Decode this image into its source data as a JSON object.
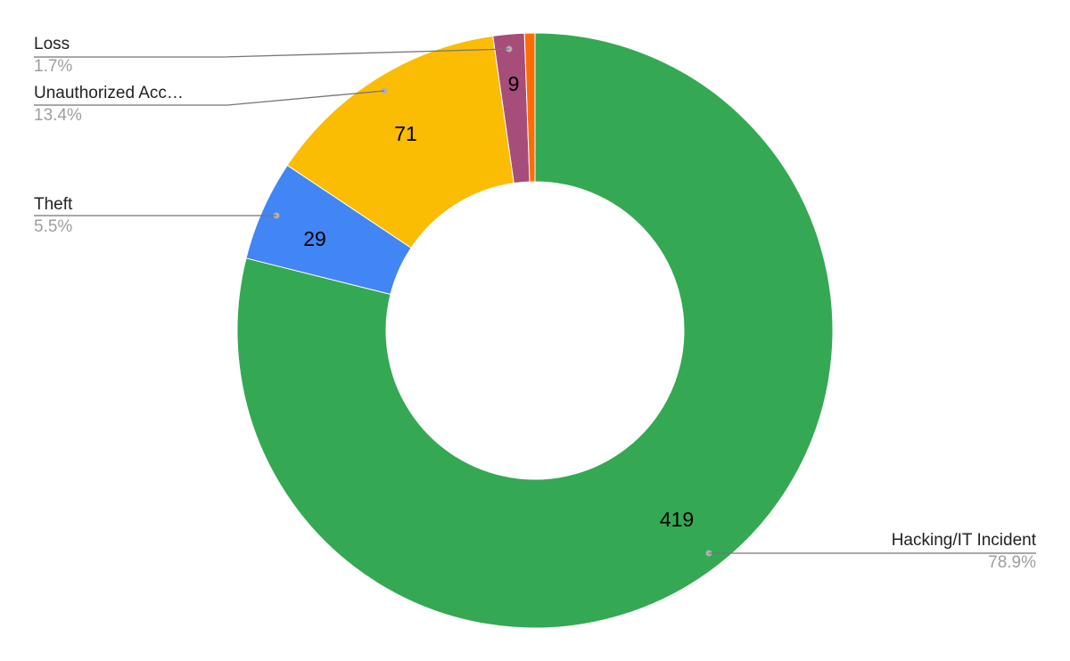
{
  "chart_data": {
    "type": "pie",
    "variant": "donut",
    "title": "",
    "series": [
      {
        "name": "Hacking/IT Incident",
        "value": 419,
        "percent_label": "78.9%",
        "value_label": "419",
        "color": "#34a853"
      },
      {
        "name": "Theft",
        "value": 29,
        "percent_label": "5.5%",
        "value_label": "29",
        "color": "#4285f4"
      },
      {
        "name": "Unauthorized Acc…",
        "value": 71,
        "percent_label": "13.4%",
        "value_label": "71",
        "color": "#fbbc04"
      },
      {
        "name": "Loss",
        "value": 9,
        "percent_label": "1.7%",
        "value_label": "9",
        "color": "#a64d79"
      },
      {
        "name": "",
        "value": 3,
        "percent_label": "",
        "value_label": "",
        "color": "#ff6d01"
      }
    ],
    "legend": "callout labels"
  }
}
